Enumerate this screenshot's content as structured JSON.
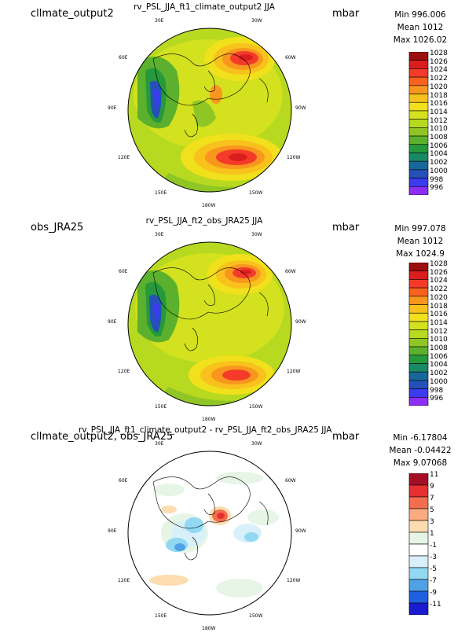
{
  "panels": [
    {
      "left_title": "cllmate_output2",
      "center_title": "rv_PSL_JJA_ft1_climate_output2 JJA",
      "units": "mbar",
      "stats": {
        "min": "Min 996.006",
        "mean": "Mean 1012",
        "max": "Max 1026.02"
      },
      "lon_labels": [
        "30E",
        "30W",
        "60E",
        "60W",
        "90E",
        "90W",
        "120E",
        "120W",
        "150E",
        "150W",
        "180W"
      ]
    },
    {
      "left_title": "obs_JRA25",
      "center_title": "rv_PSL_JJA_ft2_obs_JRA25 JJA",
      "units": "mbar",
      "stats": {
        "min": "Min 997.078",
        "mean": "Mean 1012",
        "max": "Max 1024.9"
      },
      "lon_labels": [
        "30E",
        "30W",
        "60E",
        "60W",
        "90E",
        "90W",
        "120E",
        "120W",
        "150E",
        "150W",
        "180W"
      ]
    },
    {
      "left_title": "cllmate_output2, obs_JRA25",
      "center_title": "rv_PSL_JJA_ft1_climate_output2 - rv_PSL_JJA_ft2_obs_JRA25 JJA",
      "units": "mbar",
      "stats": {
        "min": "Min -6.17804",
        "mean": "Mean -0.04422",
        "max": "Max 9.07068"
      },
      "lon_labels": [
        "30E",
        "30W",
        "60E",
        "60W",
        "90E",
        "90W",
        "120E",
        "120W",
        "150E",
        "150W",
        "180W"
      ]
    }
  ],
  "legend_psl": {
    "labels": [
      "1028",
      "1026",
      "1024",
      "1022",
      "1020",
      "1018",
      "1016",
      "1014",
      "1012",
      "1010",
      "1008",
      "1006",
      "1004",
      "1002",
      "1000",
      "998",
      "996"
    ],
    "colors": [
      "#9c0f0f",
      "#dc1d1d",
      "#f43b2a",
      "#f8621c",
      "#f8961e",
      "#f9c11c",
      "#f1e01c",
      "#d3e11e",
      "#b7d920",
      "#8fc625",
      "#5bb12d",
      "#26993c",
      "#188a66",
      "#16689a",
      "#2550b8",
      "#3b3bef",
      "#8b2ff5"
    ]
  },
  "legend_diff": {
    "labels": [
      "11",
      "9",
      "7",
      "5",
      "3",
      "1",
      "-1",
      "-3",
      "-5",
      "-7",
      "-9",
      "-11"
    ],
    "colors": [
      "#a50f26",
      "#e5302f",
      "#f46d4e",
      "#fcab80",
      "#fcdcb0",
      "#e6f5e6",
      "#ffffff",
      "#d8f0fa",
      "#92d8f2",
      "#4fa2e6",
      "#2060e0",
      "#1a1ad0"
    ]
  }
}
